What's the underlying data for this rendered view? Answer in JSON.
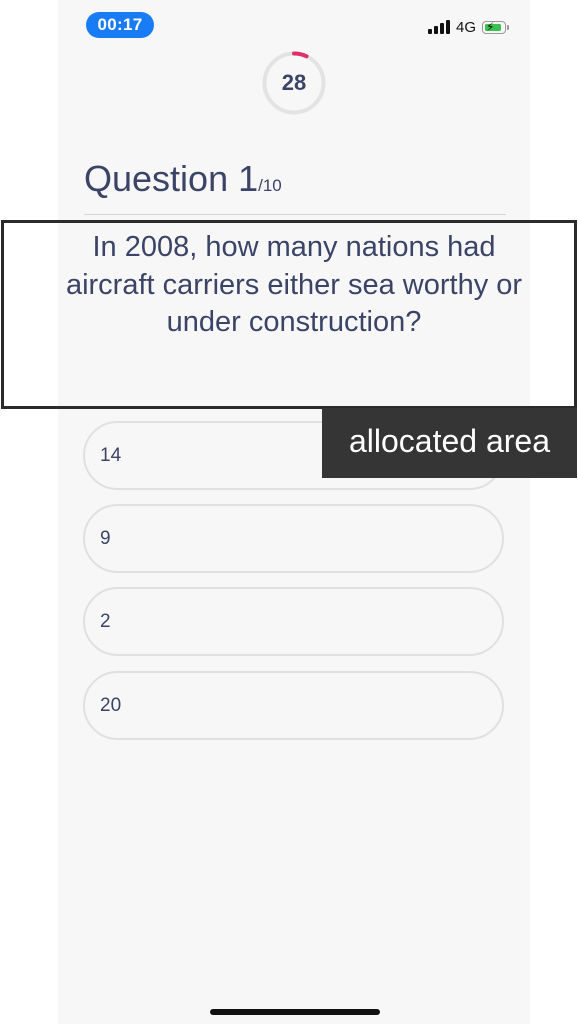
{
  "status_bar": {
    "time": "00:17",
    "network": "4G",
    "battery_icon": "battery-charging-icon",
    "signal_icon": "signal-bars-icon",
    "time_pill_color": "#1a7cf5"
  },
  "timer": {
    "value": "28",
    "progress_fraction": 0.07,
    "accent_color": "#e0306a"
  },
  "question": {
    "label": "Question 1",
    "total": "/10",
    "text": "In 2008, how many nations had aircraft carriers either sea worthy or under construction?"
  },
  "answers": [
    {
      "label": "14"
    },
    {
      "label": "9"
    },
    {
      "label": "2"
    },
    {
      "label": "20"
    }
  ],
  "overlay": {
    "tag": "allocated area"
  }
}
